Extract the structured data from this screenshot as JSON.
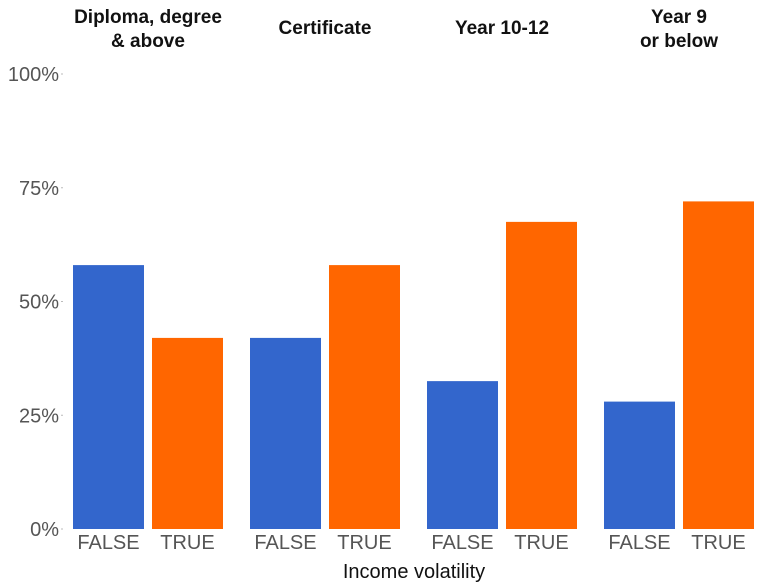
{
  "chart_data": {
    "type": "bar",
    "xlabel": "Income volatility",
    "ylabel": "",
    "ylim": [
      0,
      100
    ],
    "yticks": [
      {
        "value": 0,
        "label": "0%"
      },
      {
        "value": 25,
        "label": "25%"
      },
      {
        "value": 50,
        "label": "50%"
      },
      {
        "value": 75,
        "label": "75%"
      },
      {
        "value": 100,
        "label": "100%"
      }
    ],
    "colors": {
      "FALSE": "#3366cc",
      "TRUE": "#ff6600"
    },
    "facets": [
      {
        "title_lines": [
          "Diploma, degree",
          "& above"
        ],
        "categories": [
          "FALSE",
          "TRUE"
        ],
        "values": [
          58,
          42
        ]
      },
      {
        "title_lines": [
          "Certificate"
        ],
        "categories": [
          "FALSE",
          "TRUE"
        ],
        "values": [
          42,
          58
        ]
      },
      {
        "title_lines": [
          "Year 10-12"
        ],
        "categories": [
          "FALSE",
          "TRUE"
        ],
        "values": [
          32.5,
          67.5
        ]
      },
      {
        "title_lines": [
          "Year 9",
          "or below"
        ],
        "categories": [
          "FALSE",
          "TRUE"
        ],
        "values": [
          28,
          72
        ]
      }
    ]
  }
}
